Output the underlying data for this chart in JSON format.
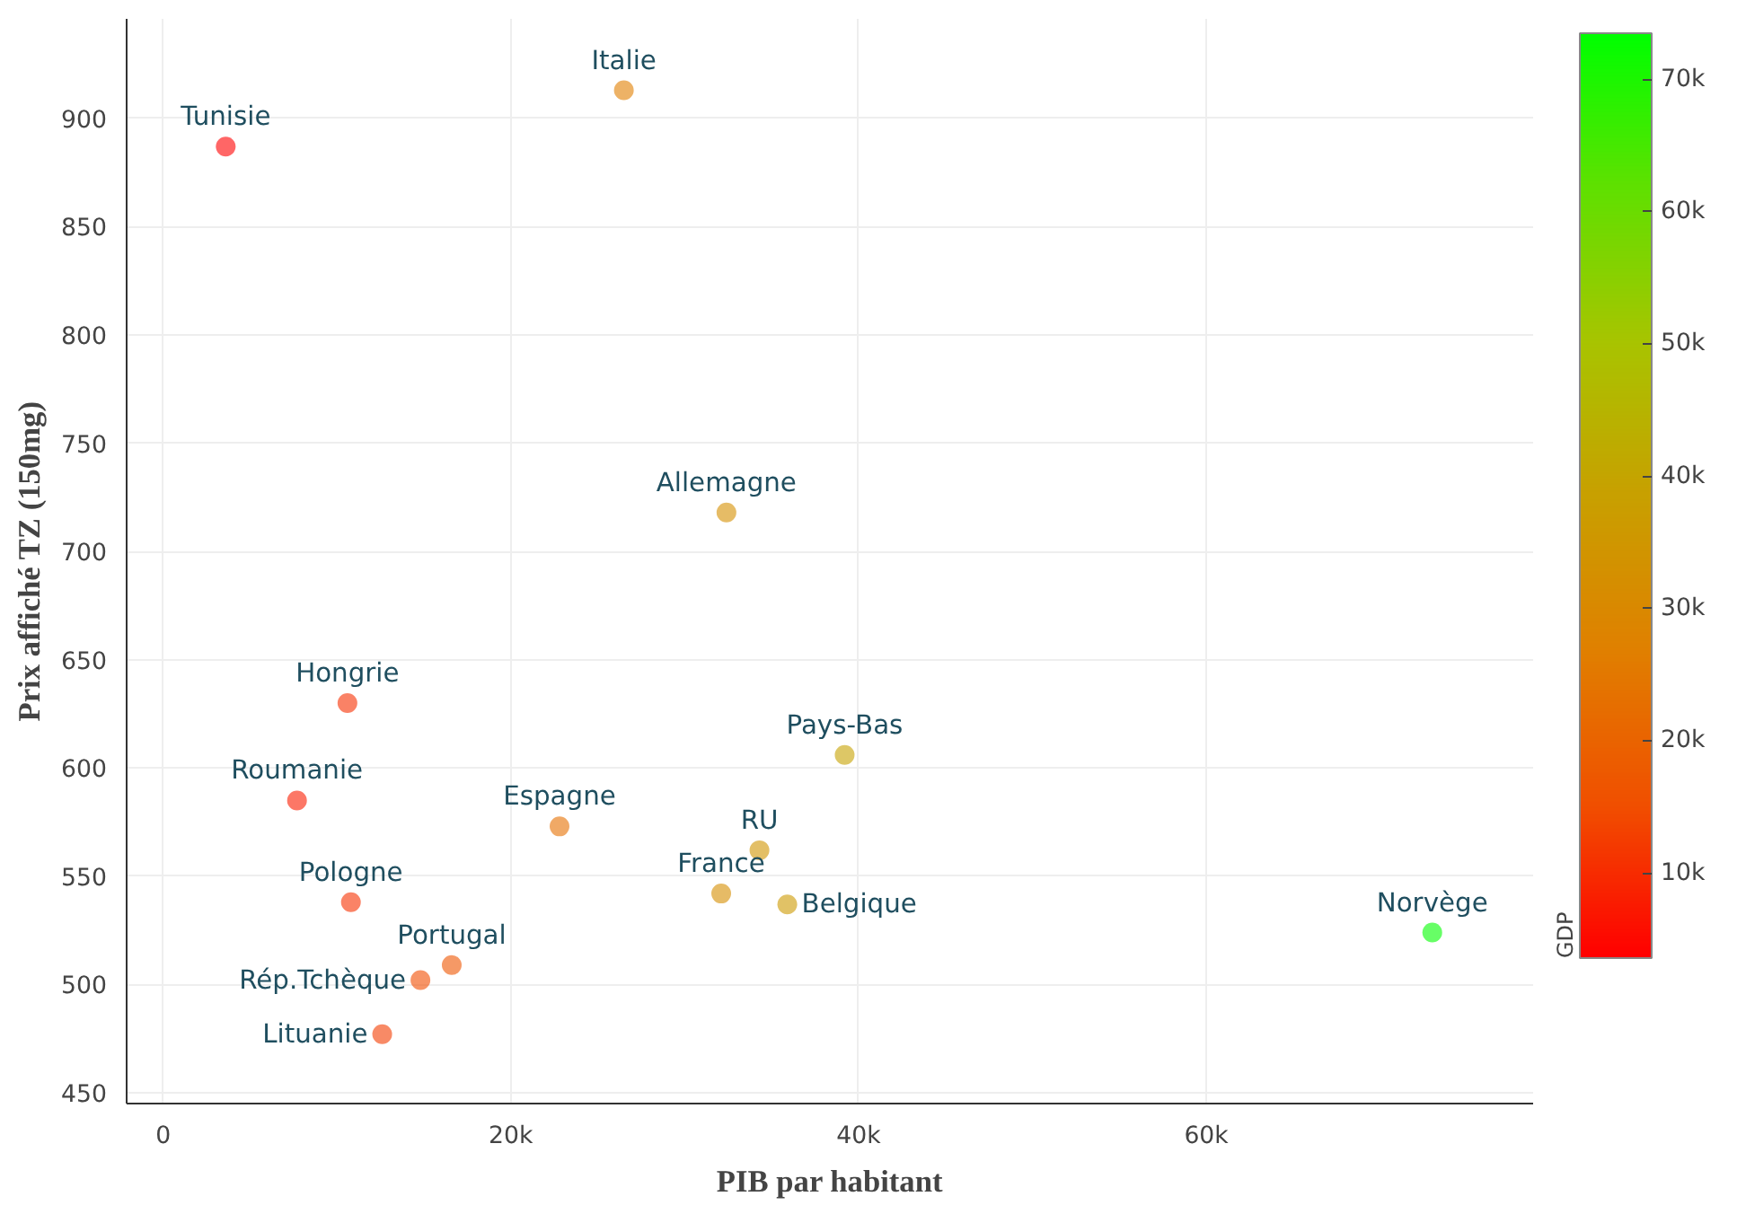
{
  "chart_data": {
    "type": "scatter",
    "xlabel": "PIB par habitant",
    "ylabel": "Prix affiché TZ (150mg)",
    "clabel": "GDP",
    "x": [
      3600,
      26500,
      32400,
      10600,
      7700,
      39200,
      22800,
      34300,
      32100,
      35900,
      10800,
      16600,
      14800,
      12600,
      73000
    ],
    "values": [
      887,
      913,
      718,
      630,
      585,
      606,
      573,
      562,
      542,
      537,
      538,
      509,
      502,
      477,
      524
    ],
    "cvalues": [
      3600,
      26500,
      32400,
      10600,
      7700,
      39200,
      22800,
      34300,
      32100,
      35900,
      10800,
      16600,
      14800,
      12600,
      73000
    ],
    "annotations": [
      {
        "text": "Tunisie",
        "x": 3600,
        "y": 887
      },
      {
        "text": "Italie",
        "x": 26500,
        "y": 913
      },
      {
        "text": "Allemagne",
        "x": 32400,
        "y": 718
      },
      {
        "text": "Hongrie",
        "x": 10600,
        "y": 630
      },
      {
        "text": "Roumanie",
        "x": 7700,
        "y": 585
      },
      {
        "text": "Pays-Bas",
        "x": 39200,
        "y": 606
      },
      {
        "text": "Espagne",
        "x": 22800,
        "y": 573
      },
      {
        "text": "RU",
        "x": 34300,
        "y": 562
      },
      {
        "text": "France",
        "x": 32100,
        "y": 542
      },
      {
        "text": "Belgique",
        "x": 35900,
        "y": 537
      },
      {
        "text": "Pologne",
        "x": 10800,
        "y": 538
      },
      {
        "text": "Portugal",
        "x": 16600,
        "y": 509
      },
      {
        "text": "Rép.Tchèque",
        "x": 14800,
        "y": 502
      },
      {
        "text": "Lituanie",
        "x": 12600,
        "y": 477
      },
      {
        "text": "Norvège",
        "x": 73000,
        "y": 524
      }
    ],
    "xlim": [
      -2100,
      78800
    ],
    "ylim": [
      445,
      946
    ],
    "xticks": [
      0,
      {
        "value": 20000,
        "label": "20k"
      },
      {
        "value": 40000,
        "label": "40k"
      },
      {
        "value": 60000,
        "label": "60k"
      }
    ],
    "yticks": [
      450,
      500,
      550,
      600,
      650,
      700,
      750,
      800,
      850,
      900
    ],
    "clim": [
      3600,
      73500
    ],
    "cticks": [
      {
        "value": 10000,
        "label": "10k"
      },
      {
        "value": 20000,
        "label": "20k"
      },
      {
        "value": 30000,
        "label": "30k"
      },
      {
        "value": 40000,
        "label": "40k"
      },
      {
        "value": 50000,
        "label": "50k"
      },
      {
        "value": 60000,
        "label": "60k"
      },
      {
        "value": 70000,
        "label": "70k"
      }
    ],
    "grid": true,
    "marker": "circle"
  }
}
